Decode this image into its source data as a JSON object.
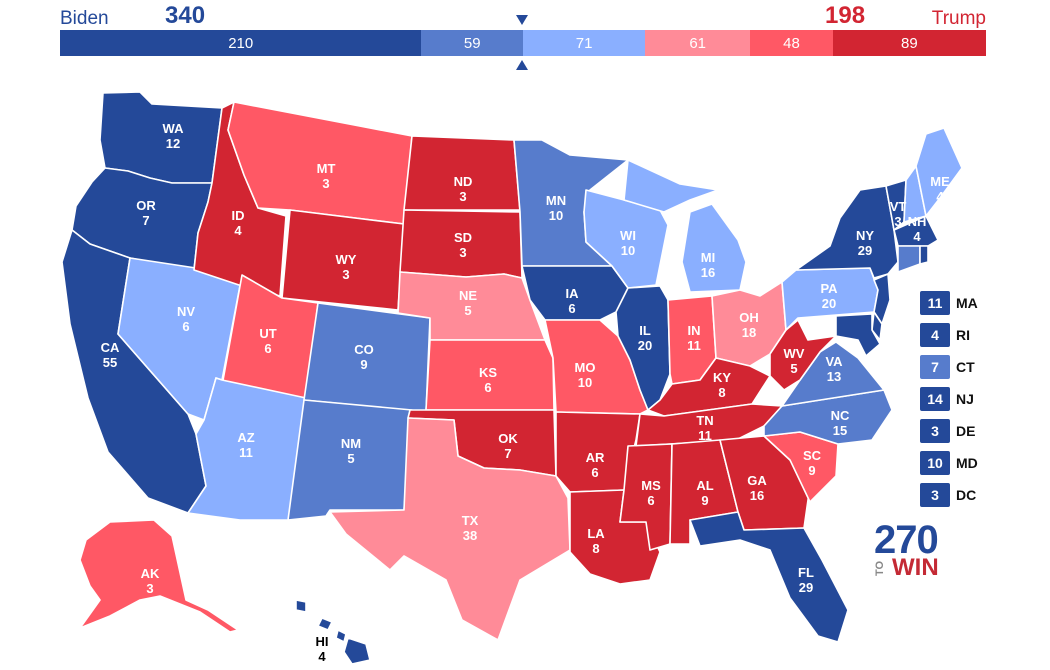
{
  "header": {
    "biden": {
      "name": "Biden",
      "total": "340"
    },
    "trump": {
      "name": "Trump",
      "total": "198"
    }
  },
  "colors": {
    "safe_d": "#244999",
    "likely_d": "#577ccc",
    "lean_d": "#8aafff",
    "lean_r": "#ff8b98",
    "likely_r": "#ff5865",
    "safe_r": "#d22532"
  },
  "ev_bar": [
    {
      "value": 210,
      "label": "210",
      "rating": "safe_d"
    },
    {
      "value": 59,
      "label": "59",
      "rating": "likely_d"
    },
    {
      "value": 71,
      "label": "71",
      "rating": "lean_d"
    },
    {
      "value": 61,
      "label": "61",
      "rating": "lean_r"
    },
    {
      "value": 48,
      "label": "48",
      "rating": "likely_r"
    },
    {
      "value": 89,
      "label": "89",
      "rating": "safe_r"
    }
  ],
  "states": {
    "WA": {
      "abbr": "WA",
      "ev": "12",
      "rating": "safe_d"
    },
    "OR": {
      "abbr": "OR",
      "ev": "7",
      "rating": "safe_d"
    },
    "CA": {
      "abbr": "CA",
      "ev": "55",
      "rating": "safe_d"
    },
    "NV": {
      "abbr": "NV",
      "ev": "6",
      "rating": "lean_d"
    },
    "ID": {
      "abbr": "ID",
      "ev": "4",
      "rating": "safe_r"
    },
    "MT": {
      "abbr": "MT",
      "ev": "3",
      "rating": "likely_r"
    },
    "WY": {
      "abbr": "WY",
      "ev": "3",
      "rating": "safe_r"
    },
    "UT": {
      "abbr": "UT",
      "ev": "6",
      "rating": "likely_r"
    },
    "AZ": {
      "abbr": "AZ",
      "ev": "11",
      "rating": "lean_d"
    },
    "CO": {
      "abbr": "CO",
      "ev": "9",
      "rating": "likely_d"
    },
    "NM": {
      "abbr": "NM",
      "ev": "5",
      "rating": "likely_d"
    },
    "ND": {
      "abbr": "ND",
      "ev": "3",
      "rating": "safe_r"
    },
    "SD": {
      "abbr": "SD",
      "ev": "3",
      "rating": "safe_r"
    },
    "NE": {
      "abbr": "NE",
      "ev": "5",
      "rating": "lean_r"
    },
    "KS": {
      "abbr": "KS",
      "ev": "6",
      "rating": "likely_r"
    },
    "OK": {
      "abbr": "OK",
      "ev": "7",
      "rating": "safe_r"
    },
    "TX": {
      "abbr": "TX",
      "ev": "38",
      "rating": "lean_r"
    },
    "MN": {
      "abbr": "MN",
      "ev": "10",
      "rating": "likely_d"
    },
    "IA": {
      "abbr": "IA",
      "ev": "6",
      "rating": "safe_d"
    },
    "MO": {
      "abbr": "MO",
      "ev": "10",
      "rating": "likely_r"
    },
    "AR": {
      "abbr": "AR",
      "ev": "6",
      "rating": "safe_r"
    },
    "LA": {
      "abbr": "LA",
      "ev": "8",
      "rating": "safe_r"
    },
    "WI": {
      "abbr": "WI",
      "ev": "10",
      "rating": "lean_d"
    },
    "IL": {
      "abbr": "IL",
      "ev": "20",
      "rating": "safe_d"
    },
    "MI": {
      "abbr": "MI",
      "ev": "16",
      "rating": "lean_d"
    },
    "IN": {
      "abbr": "IN",
      "ev": "11",
      "rating": "likely_r"
    },
    "OH": {
      "abbr": "OH",
      "ev": "18",
      "rating": "lean_r"
    },
    "KY": {
      "abbr": "KY",
      "ev": "8",
      "rating": "safe_r"
    },
    "TN": {
      "abbr": "TN",
      "ev": "11",
      "rating": "safe_r"
    },
    "MS": {
      "abbr": "MS",
      "ev": "6",
      "rating": "safe_r"
    },
    "AL": {
      "abbr": "AL",
      "ev": "9",
      "rating": "safe_r"
    },
    "GA": {
      "abbr": "GA",
      "ev": "16",
      "rating": "safe_r"
    },
    "FL": {
      "abbr": "FL",
      "ev": "29",
      "rating": "safe_d"
    },
    "SC": {
      "abbr": "SC",
      "ev": "9",
      "rating": "likely_r"
    },
    "NC": {
      "abbr": "NC",
      "ev": "15",
      "rating": "likely_d"
    },
    "VA": {
      "abbr": "VA",
      "ev": "13",
      "rating": "likely_d"
    },
    "WV": {
      "abbr": "WV",
      "ev": "5",
      "rating": "safe_r"
    },
    "PA": {
      "abbr": "PA",
      "ev": "20",
      "rating": "lean_d"
    },
    "NY": {
      "abbr": "NY",
      "ev": "29",
      "rating": "safe_d"
    },
    "VT": {
      "abbr": "VT",
      "ev": "3",
      "rating": "safe_d"
    },
    "NH": {
      "abbr": "NH",
      "ev": "4",
      "rating": "lean_d"
    },
    "ME": {
      "abbr": "ME",
      "ev": "4",
      "rating": "lean_d"
    },
    "MA": {
      "abbr": "MA",
      "ev": "11",
      "rating": "safe_d"
    },
    "RI": {
      "abbr": "RI",
      "ev": "4",
      "rating": "safe_d"
    },
    "CT": {
      "abbr": "CT",
      "ev": "7",
      "rating": "likely_d"
    },
    "NJ": {
      "abbr": "NJ",
      "ev": "14",
      "rating": "safe_d"
    },
    "DE": {
      "abbr": "DE",
      "ev": "3",
      "rating": "safe_d"
    },
    "MD": {
      "abbr": "MD",
      "ev": "10",
      "rating": "safe_d"
    },
    "DC": {
      "abbr": "DC",
      "ev": "3",
      "rating": "safe_d"
    },
    "AK": {
      "abbr": "AK",
      "ev": "3",
      "rating": "likely_r"
    },
    "HI": {
      "abbr": "HI",
      "ev": "4",
      "rating": "safe_d"
    }
  },
  "small_states": [
    {
      "abbr": "MA",
      "ev": "11",
      "rating": "safe_d"
    },
    {
      "abbr": "RI",
      "ev": "4",
      "rating": "safe_d"
    },
    {
      "abbr": "CT",
      "ev": "7",
      "rating": "likely_d"
    },
    {
      "abbr": "NJ",
      "ev": "14",
      "rating": "safe_d"
    },
    {
      "abbr": "DE",
      "ev": "3",
      "rating": "safe_d"
    },
    {
      "abbr": "MD",
      "ev": "10",
      "rating": "safe_d"
    },
    {
      "abbr": "DC",
      "ev": "3",
      "rating": "safe_d"
    }
  ],
  "logo": {
    "number": "270",
    "to": "TO",
    "win": "WIN"
  }
}
